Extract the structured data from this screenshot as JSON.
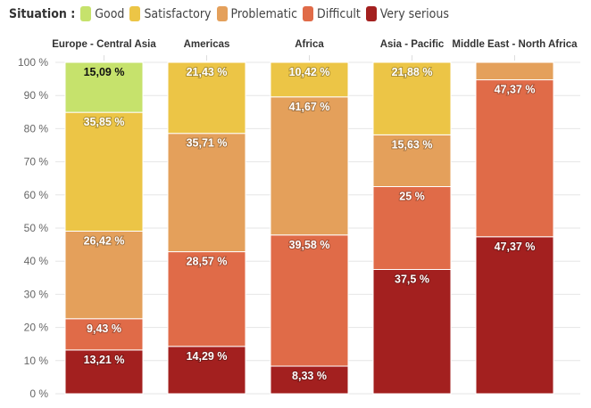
{
  "legend": {
    "title": "Situation :",
    "items": [
      {
        "label": "Good",
        "color": "#c6e26c"
      },
      {
        "label": "Satisfactory",
        "color": "#ecc546"
      },
      {
        "label": "Problematic",
        "color": "#e4a05b"
      },
      {
        "label": "Difficult",
        "color": "#e06b48"
      },
      {
        "label": "Very serious",
        "color": "#a3201f"
      }
    ]
  },
  "chart_data": {
    "type": "bar",
    "stacked": true,
    "categories": [
      "Europe - Central Asia",
      "Americas",
      "Africa",
      "Asia - Pacific",
      "Middle East - North Africa"
    ],
    "series": [
      {
        "name": "Very serious",
        "values": [
          13.21,
          14.29,
          8.33,
          37.5,
          47.37
        ],
        "labels": [
          "13,21 %",
          "14,29 %",
          "8,33 %",
          "37,5 %",
          "47,37 %"
        ]
      },
      {
        "name": "Difficult",
        "values": [
          9.43,
          28.57,
          39.58,
          25,
          47.37
        ],
        "labels": [
          "9,43 %",
          "28,57 %",
          "39,58 %",
          "25 %",
          "47,37 %"
        ]
      },
      {
        "name": "Problematic",
        "values": [
          26.42,
          35.71,
          41.67,
          15.63,
          5.26
        ],
        "labels": [
          "26,42 %",
          "35,71 %",
          "41,67 %",
          "15,63 %",
          ""
        ]
      },
      {
        "name": "Satisfactory",
        "values": [
          35.85,
          21.43,
          10.42,
          21.88,
          0
        ],
        "labels": [
          "35,85 %",
          "21,43 %",
          "10,42 %",
          "21,88 %",
          ""
        ]
      },
      {
        "name": "Good",
        "values": [
          15.09,
          0,
          0,
          0,
          0
        ],
        "labels": [
          "15,09 %",
          "",
          "",
          "",
          ""
        ]
      }
    ],
    "yticks": [
      "0 %",
      "10 %",
      "20 %",
      "30 %",
      "40 %",
      "50 %",
      "60 %",
      "70 %",
      "80 %",
      "90 %",
      "100 %"
    ],
    "ylim": [
      0,
      100
    ],
    "grid": true,
    "legend_position": "top-left"
  }
}
